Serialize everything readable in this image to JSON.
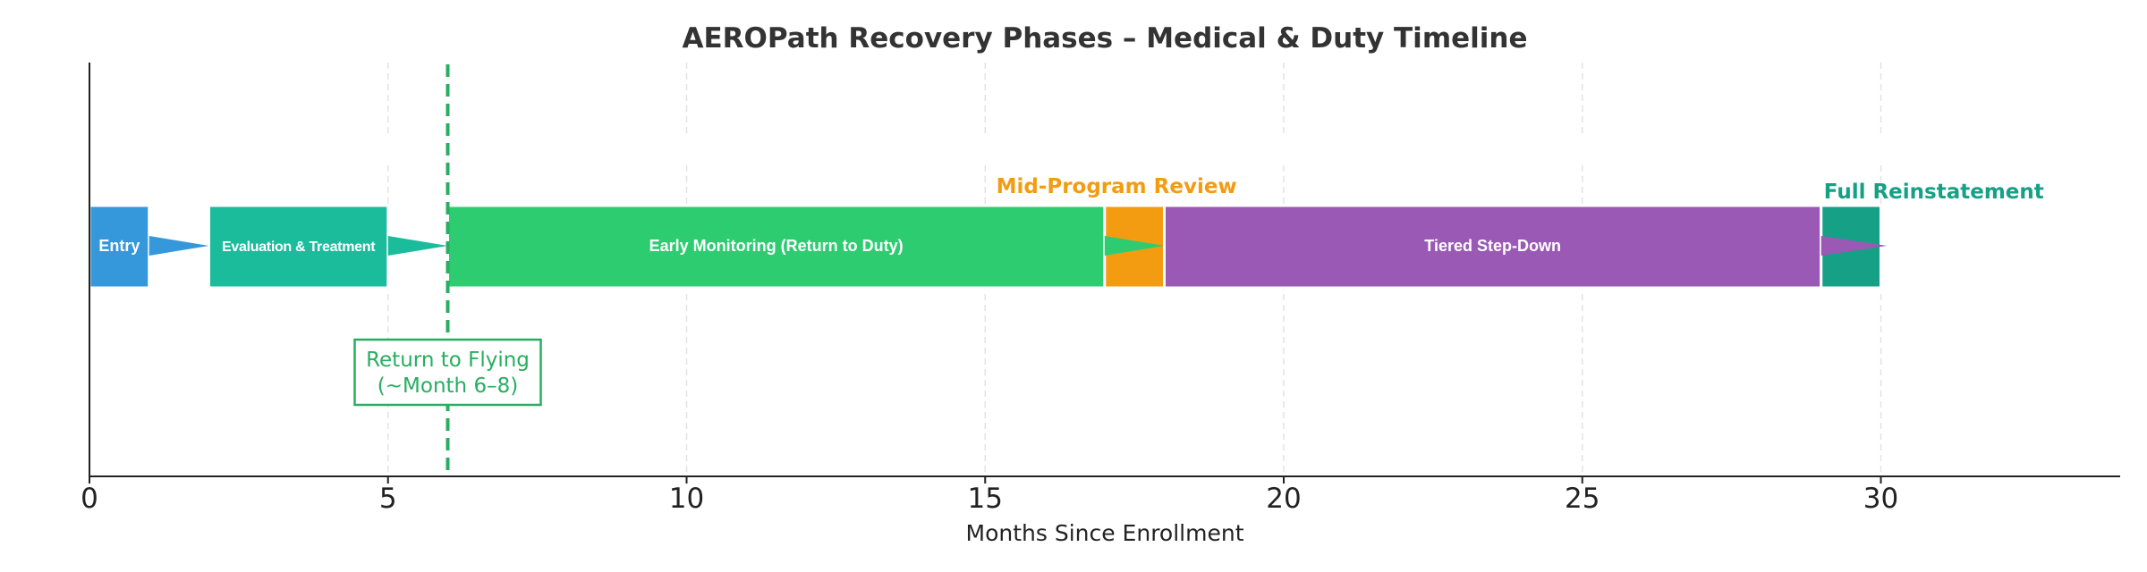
{
  "chart_data": {
    "type": "timeline",
    "title": "AEROPath Recovery Phases – Medical & Duty Timeline",
    "xlabel": "Months Since Enrollment",
    "xlim": [
      0,
      34
    ],
    "xticks": [
      0,
      5,
      10,
      15,
      20,
      25,
      30
    ],
    "grid": "vertical dashed at ticks",
    "phases": [
      {
        "name": "Entry",
        "start": 0,
        "end": 1,
        "color": "#3498db"
      },
      {
        "name": "Evaluation & Treatment",
        "start": 2,
        "end": 5,
        "color": "#1abc9c"
      },
      {
        "name": "Early Monitoring (Return to Duty)",
        "start": 6,
        "end": 17,
        "color": "#2ecc71"
      },
      {
        "name": "",
        "start": 17,
        "end": 18,
        "color": "#f39c12"
      },
      {
        "name": "Tiered Step-Down",
        "start": 18,
        "end": 29,
        "color": "#9b59b6"
      },
      {
        "name": "",
        "start": 29,
        "end": 30,
        "color": "#16a085"
      }
    ],
    "connectors": [
      {
        "from": 1,
        "to": 2,
        "color": "#3498db"
      },
      {
        "from": 5,
        "to": 6,
        "color": "#1abc9c"
      },
      {
        "from": 17,
        "to": 18,
        "color": "#2ecc71"
      },
      {
        "from": 29,
        "to": 30.1,
        "color": "#9b59b6"
      }
    ],
    "milestones": [
      {
        "label": "Mid-Program Review",
        "at": 17.5,
        "color": "#f39c12"
      },
      {
        "label": "Full Reinstatement",
        "at": 29,
        "color": "#16a085"
      }
    ],
    "marker_line": {
      "x": 6,
      "color": "#27ae60",
      "label_line1": "Return to Flying",
      "label_line2": "(~Month 6–8)"
    }
  }
}
